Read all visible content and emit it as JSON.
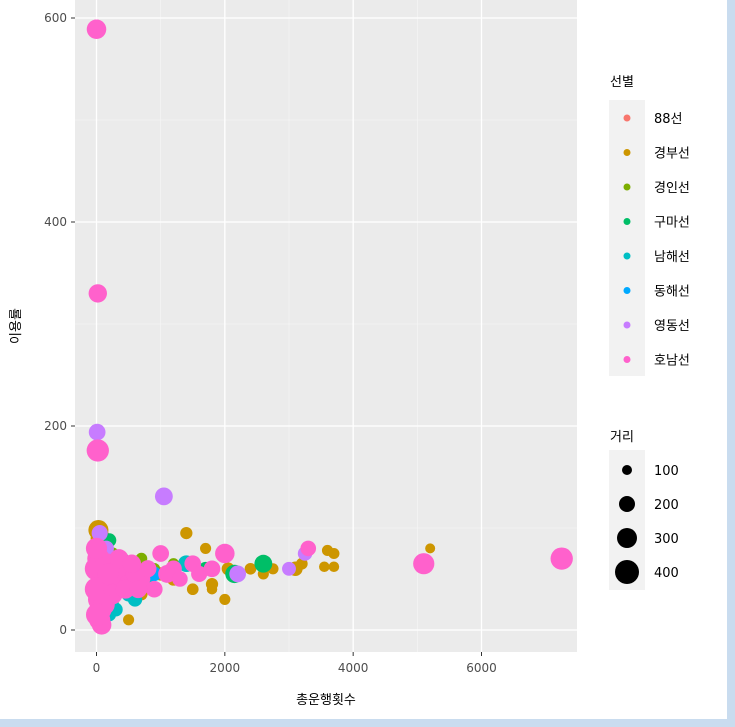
{
  "chart_data": {
    "type": "scatter",
    "title": "",
    "xlabel": "총운행횟수",
    "ylabel": "이용률",
    "xlim": [
      -300,
      7600
    ],
    "ylim": [
      -25,
      600
    ],
    "x_ticks": [
      0,
      2000,
      4000,
      6000
    ],
    "y_ticks": [
      0,
      200,
      400,
      600
    ],
    "grid": true,
    "legend_position": "right",
    "color_legend": {
      "title": "선별",
      "entries": [
        {
          "name": "88선",
          "color": "#F8766D"
        },
        {
          "name": "경부선",
          "color": "#CD9600"
        },
        {
          "name": "경인선",
          "color": "#7CAE00"
        },
        {
          "name": "구마선",
          "color": "#00BE67"
        },
        {
          "name": "남해선",
          "color": "#00BFC4"
        },
        {
          "name": "동해선",
          "color": "#00A9FF"
        },
        {
          "name": "영동선",
          "color": "#C77CFF"
        },
        {
          "name": "호남선",
          "color": "#FF61CC"
        }
      ]
    },
    "size_legend": {
      "title": "거리",
      "entries": [
        {
          "label": "100",
          "value": 100
        },
        {
          "label": "200",
          "value": 200
        },
        {
          "label": "300",
          "value": 300
        },
        {
          "label": "400",
          "value": 400
        }
      ]
    },
    "series": [
      {
        "name": "경부선",
        "points": [
          [
            30,
            98,
            260
          ],
          [
            60,
            90,
            250
          ],
          [
            150,
            70,
            200
          ],
          [
            300,
            60,
            180
          ],
          [
            450,
            55,
            160
          ],
          [
            600,
            45,
            150
          ],
          [
            800,
            60,
            150
          ],
          [
            1000,
            55,
            140
          ],
          [
            1200,
            50,
            140
          ],
          [
            1400,
            95,
            120
          ],
          [
            1500,
            40,
            110
          ],
          [
            1600,
            55,
            110
          ],
          [
            1700,
            80,
            100
          ],
          [
            1800,
            45,
            120
          ],
          [
            2000,
            30,
            100
          ],
          [
            2050,
            60,
            130
          ],
          [
            2200,
            55,
            120
          ],
          [
            2400,
            60,
            110
          ],
          [
            2600,
            55,
            100
          ],
          [
            2750,
            60,
            100
          ],
          [
            3100,
            60,
            160
          ],
          [
            3200,
            65,
            110
          ],
          [
            3600,
            78,
            100
          ],
          [
            3700,
            75,
            100
          ],
          [
            3550,
            62,
            90
          ],
          [
            3700,
            62,
            90
          ],
          [
            5200,
            80,
            80
          ],
          [
            1800,
            40,
            90
          ],
          [
            500,
            10,
            100
          ],
          [
            700,
            35,
            120
          ]
        ]
      },
      {
        "name": "구마선",
        "points": [
          [
            200,
            88,
            150
          ],
          [
            400,
            70,
            140
          ],
          [
            500,
            40,
            150
          ],
          [
            600,
            30,
            140
          ],
          [
            350,
            55,
            160
          ],
          [
            2600,
            65,
            220
          ],
          [
            2150,
            55,
            230
          ],
          [
            1700,
            60,
            150
          ],
          [
            250,
            25,
            130
          ],
          [
            100,
            60,
            170
          ]
        ]
      },
      {
        "name": "경인선",
        "points": [
          [
            400,
            65,
            120
          ],
          [
            700,
            70,
            110
          ],
          [
            1200,
            65,
            100
          ],
          [
            900,
            60,
            110
          ],
          [
            250,
            75,
            120
          ]
        ]
      },
      {
        "name": "남해선",
        "points": [
          [
            300,
            20,
            150
          ],
          [
            600,
            30,
            160
          ],
          [
            800,
            45,
            150
          ],
          [
            1400,
            65,
            200
          ],
          [
            200,
            15,
            140
          ],
          [
            500,
            35,
            160
          ],
          [
            100,
            40,
            140
          ]
        ]
      },
      {
        "name": "동해선",
        "points": [
          [
            150,
            35,
            130
          ],
          [
            350,
            45,
            150
          ],
          [
            900,
            55,
            160
          ],
          [
            50,
            30,
            140
          ],
          [
            550,
            50,
            150
          ]
        ]
      },
      {
        "name": "영동선",
        "points": [
          [
            10,
            194,
            200
          ],
          [
            1050,
            131,
            220
          ],
          [
            50,
            95,
            190
          ],
          [
            3250,
            75,
            160
          ],
          [
            2200,
            55,
            200
          ],
          [
            3000,
            60,
            150
          ],
          [
            150,
            80,
            180
          ]
        ]
      },
      {
        "name": "88선",
        "points": [
          [
            50,
            70,
            120
          ],
          [
            120,
            50,
            110
          ],
          [
            200,
            60,
            110
          ]
        ]
      },
      {
        "name": "호남선",
        "points": [
          [
            0,
            589,
            250
          ],
          [
            20,
            330,
            230
          ],
          [
            20,
            176,
            300
          ],
          [
            7250,
            70,
            300
          ],
          [
            5100,
            65,
            280
          ],
          [
            3300,
            80,
            180
          ],
          [
            2000,
            75,
            250
          ],
          [
            1000,
            75,
            200
          ],
          [
            1500,
            65,
            200
          ],
          [
            50,
            10,
            280
          ],
          [
            80,
            5,
            250
          ],
          [
            50,
            30,
            320
          ],
          [
            100,
            45,
            300
          ],
          [
            200,
            50,
            280
          ],
          [
            300,
            55,
            260
          ],
          [
            400,
            60,
            250
          ],
          [
            500,
            45,
            240
          ],
          [
            600,
            55,
            230
          ],
          [
            700,
            50,
            220
          ],
          [
            800,
            60,
            210
          ],
          [
            900,
            40,
            200
          ],
          [
            1100,
            55,
            220
          ],
          [
            1200,
            60,
            200
          ],
          [
            1300,
            50,
            180
          ],
          [
            1600,
            55,
            190
          ],
          [
            1800,
            60,
            200
          ],
          [
            0,
            60,
            320
          ],
          [
            0,
            40,
            320
          ],
          [
            30,
            70,
            300
          ],
          [
            60,
            20,
            300
          ],
          [
            150,
            65,
            280
          ],
          [
            250,
            35,
            260
          ],
          [
            350,
            70,
            240
          ],
          [
            450,
            40,
            240
          ],
          [
            550,
            65,
            230
          ],
          [
            650,
            40,
            220
          ],
          [
            120,
            25,
            280
          ],
          [
            180,
            55,
            270
          ],
          [
            0,
            80,
            280
          ],
          [
            10,
            15,
            300
          ]
        ]
      }
    ]
  }
}
